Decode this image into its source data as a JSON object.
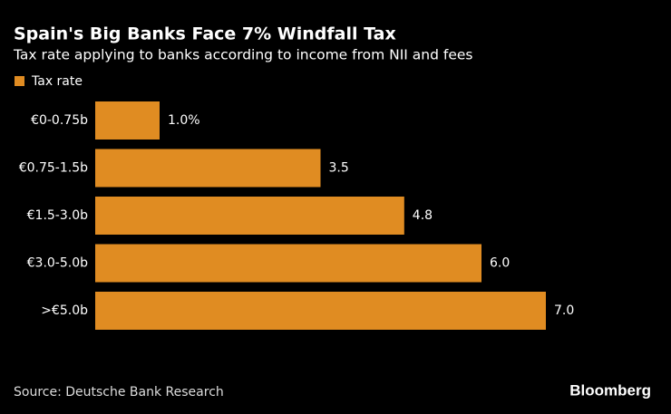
{
  "chart_data": {
    "type": "barh",
    "title": "Spain's Big Banks Face 7% Windfall Tax",
    "subtitle": "Tax rate applying to banks according to income from NII and fees",
    "categories": [
      "€0-0.75b",
      "€0.75-1.5b",
      "€1.5-3.0b",
      "€3.0-5.0b",
      ">€5.0b"
    ],
    "series": [
      {
        "name": "Tax rate",
        "color": "#e08c22",
        "values": [
          1.0,
          3.5,
          4.8,
          6.0,
          7.0
        ],
        "value_labels": [
          "1.0%",
          "3.5",
          "4.8",
          "6.0",
          "7.0"
        ]
      }
    ],
    "source": "Source: Deutsche Bank Research",
    "credit": "Bloomberg"
  }
}
